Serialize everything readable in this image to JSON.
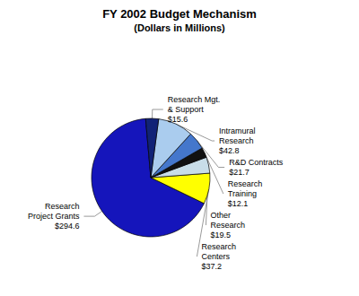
{
  "chart_data": {
    "type": "pie",
    "title": "FY 2002 Budget Mechanism",
    "subtitle": "(Dollars in Millions)",
    "categories": [
      "Research\nProject Grants\n$294.6",
      "Research\nCenters\n$37.2",
      "Other\nResearch\n$19.5",
      "Research\nTraining\n$12.1",
      "R&D Contracts\n$21.7",
      "Intramural\nResearch\n$42.8",
      "Research Mgt.\n& Support\n$15.6"
    ],
    "values": [
      294.6,
      37.2,
      19.5,
      12.1,
      21.7,
      42.8,
      15.6
    ],
    "colors": [
      "#1515BB",
      "#FFFF00",
      "#C8DDE8",
      "#111111",
      "#4477CC",
      "#AACCEE",
      "#112277"
    ]
  }
}
